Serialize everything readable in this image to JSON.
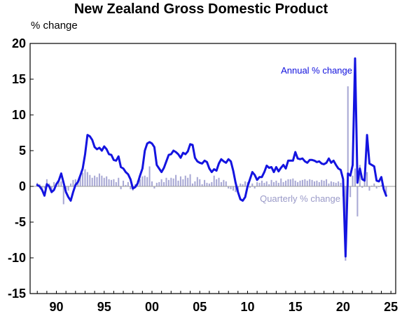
{
  "chart_data": {
    "type": "bar+line",
    "title": "New Zealand Gross Domestic Product",
    "ylabel": "% change",
    "xlabel": "",
    "ylim": [
      -15,
      20
    ],
    "yticks": [
      20,
      15,
      10,
      5,
      0,
      -5,
      -10,
      -15
    ],
    "xlim": [
      1987.25,
      2025.5
    ],
    "xticks": [
      {
        "year": 1990,
        "label": "90"
      },
      {
        "year": 1995,
        "label": "95"
      },
      {
        "year": 2000,
        "label": "00"
      },
      {
        "year": 2005,
        "label": "05"
      },
      {
        "year": 2010,
        "label": "10"
      },
      {
        "year": 2015,
        "label": "15"
      },
      {
        "year": 2020,
        "label": "20"
      },
      {
        "year": 2025,
        "label": "25"
      }
    ],
    "grid": false,
    "annotations": [
      {
        "text": "Annual % change",
        "series": "annual"
      },
      {
        "text": "Quarterly % change",
        "series": "quarterly"
      }
    ],
    "colors": {
      "annual": "#1414e0",
      "quarterly": "#a8a8d4",
      "zero_line": "#9a9a9a"
    },
    "series": [
      {
        "id": "annual",
        "kind": "line",
        "points": [
          [
            1988.0,
            0.2
          ],
          [
            1988.25,
            0.0
          ],
          [
            1988.5,
            -0.5
          ],
          [
            1988.75,
            -1.3
          ],
          [
            1989.0,
            0.3
          ],
          [
            1989.25,
            0.0
          ],
          [
            1989.5,
            -0.8
          ],
          [
            1989.75,
            -0.5
          ],
          [
            1990.0,
            0.3
          ],
          [
            1990.25,
            0.8
          ],
          [
            1990.5,
            1.8
          ],
          [
            1990.75,
            0.5
          ],
          [
            1991.0,
            -0.8
          ],
          [
            1991.25,
            -1.5
          ],
          [
            1991.5,
            -2.0
          ],
          [
            1991.75,
            -0.8
          ],
          [
            1992.0,
            0.2
          ],
          [
            1992.25,
            0.6
          ],
          [
            1992.5,
            1.5
          ],
          [
            1992.75,
            2.5
          ],
          [
            1993.0,
            4.5
          ],
          [
            1993.25,
            7.2
          ],
          [
            1993.5,
            7.0
          ],
          [
            1993.75,
            6.5
          ],
          [
            1994.0,
            5.5
          ],
          [
            1994.25,
            5.2
          ],
          [
            1994.5,
            5.4
          ],
          [
            1994.75,
            5.0
          ],
          [
            1995.0,
            5.6
          ],
          [
            1995.25,
            5.2
          ],
          [
            1995.5,
            4.5
          ],
          [
            1995.75,
            4.4
          ],
          [
            1996.0,
            3.7
          ],
          [
            1996.25,
            3.6
          ],
          [
            1996.5,
            4.2
          ],
          [
            1996.75,
            2.7
          ],
          [
            1997.0,
            2.5
          ],
          [
            1997.25,
            2.0
          ],
          [
            1997.5,
            1.7
          ],
          [
            1997.75,
            1.0
          ],
          [
            1998.0,
            -0.3
          ],
          [
            1998.25,
            -0.1
          ],
          [
            1998.5,
            0.4
          ],
          [
            1998.75,
            1.5
          ],
          [
            1999.0,
            2.5
          ],
          [
            1999.25,
            5.0
          ],
          [
            1999.5,
            6.0
          ],
          [
            1999.75,
            6.2
          ],
          [
            2000.0,
            6.0
          ],
          [
            2000.25,
            5.5
          ],
          [
            2000.5,
            3.0
          ],
          [
            2000.75,
            2.5
          ],
          [
            2001.0,
            2.0
          ],
          [
            2001.25,
            2.6
          ],
          [
            2001.5,
            3.5
          ],
          [
            2001.75,
            4.4
          ],
          [
            2002.0,
            4.5
          ],
          [
            2002.25,
            5.0
          ],
          [
            2002.5,
            4.8
          ],
          [
            2002.75,
            4.5
          ],
          [
            2003.0,
            4.0
          ],
          [
            2003.25,
            4.7
          ],
          [
            2003.5,
            4.5
          ],
          [
            2003.75,
            4.9
          ],
          [
            2004.0,
            5.9
          ],
          [
            2004.25,
            5.8
          ],
          [
            2004.5,
            4.0
          ],
          [
            2004.75,
            3.5
          ],
          [
            2005.0,
            3.3
          ],
          [
            2005.25,
            3.2
          ],
          [
            2005.5,
            3.6
          ],
          [
            2005.75,
            3.4
          ],
          [
            2006.0,
            2.5
          ],
          [
            2006.25,
            2.0
          ],
          [
            2006.5,
            2.4
          ],
          [
            2006.75,
            2.2
          ],
          [
            2007.0,
            3.2
          ],
          [
            2007.25,
            3.8
          ],
          [
            2007.5,
            3.5
          ],
          [
            2007.75,
            3.3
          ],
          [
            2008.0,
            3.8
          ],
          [
            2008.25,
            3.5
          ],
          [
            2008.5,
            2.2
          ],
          [
            2008.75,
            0.5
          ],
          [
            2009.0,
            -0.8
          ],
          [
            2009.25,
            -1.8
          ],
          [
            2009.5,
            -2.0
          ],
          [
            2009.75,
            -1.5
          ],
          [
            2010.0,
            0.0
          ],
          [
            2010.25,
            1.0
          ],
          [
            2010.5,
            2.0
          ],
          [
            2010.75,
            1.6
          ],
          [
            2011.0,
            0.9
          ],
          [
            2011.25,
            1.3
          ],
          [
            2011.5,
            1.3
          ],
          [
            2011.75,
            2.0
          ],
          [
            2012.0,
            2.9
          ],
          [
            2012.25,
            2.6
          ],
          [
            2012.5,
            2.7
          ],
          [
            2012.75,
            2.0
          ],
          [
            2013.0,
            2.7
          ],
          [
            2013.25,
            2.1
          ],
          [
            2013.5,
            2.6
          ],
          [
            2013.75,
            3.0
          ],
          [
            2014.0,
            2.5
          ],
          [
            2014.25,
            3.6
          ],
          [
            2014.5,
            3.6
          ],
          [
            2014.75,
            3.6
          ],
          [
            2015.0,
            4.8
          ],
          [
            2015.25,
            3.9
          ],
          [
            2015.5,
            3.8
          ],
          [
            2015.75,
            3.9
          ],
          [
            2016.0,
            3.5
          ],
          [
            2016.25,
            3.3
          ],
          [
            2016.5,
            3.7
          ],
          [
            2016.75,
            3.7
          ],
          [
            2017.0,
            3.6
          ],
          [
            2017.25,
            3.4
          ],
          [
            2017.5,
            3.5
          ],
          [
            2017.75,
            3.2
          ],
          [
            2018.0,
            3.1
          ],
          [
            2018.25,
            3.3
          ],
          [
            2018.5,
            3.9
          ],
          [
            2018.75,
            3.3
          ],
          [
            2019.0,
            3.6
          ],
          [
            2019.25,
            3.0
          ],
          [
            2019.5,
            2.5
          ],
          [
            2019.75,
            2.3
          ],
          [
            2020.0,
            1.0
          ],
          [
            2020.25,
            -9.8
          ],
          [
            2020.5,
            1.8
          ],
          [
            2020.75,
            1.5
          ],
          [
            2021.0,
            3.0
          ],
          [
            2021.25,
            17.9
          ],
          [
            2021.5,
            0.5
          ],
          [
            2021.75,
            2.5
          ],
          [
            2022.0,
            1.0
          ],
          [
            2022.25,
            0.8
          ],
          [
            2022.5,
            7.2
          ],
          [
            2022.75,
            3.2
          ],
          [
            2023.0,
            3.0
          ],
          [
            2023.25,
            2.8
          ],
          [
            2023.5,
            0.8
          ],
          [
            2023.75,
            0.7
          ],
          [
            2024.0,
            1.3
          ],
          [
            2024.25,
            -0.4
          ],
          [
            2024.5,
            -1.3
          ]
        ]
      },
      {
        "id": "quarterly",
        "kind": "bar",
        "points": [
          [
            1988.0,
            0.5
          ],
          [
            1988.25,
            0.3
          ],
          [
            1988.5,
            -0.6
          ],
          [
            1988.75,
            -0.3
          ],
          [
            1989.0,
            1.0
          ],
          [
            1989.25,
            0.4
          ],
          [
            1989.5,
            -0.8
          ],
          [
            1989.75,
            0.6
          ],
          [
            1990.0,
            0.3
          ],
          [
            1990.25,
            0.8
          ],
          [
            1990.5,
            0.7
          ],
          [
            1990.75,
            -2.5
          ],
          [
            1991.0,
            -0.4
          ],
          [
            1991.25,
            -0.6
          ],
          [
            1991.5,
            0.4
          ],
          [
            1991.75,
            0.9
          ],
          [
            1992.0,
            1.0
          ],
          [
            1992.25,
            0.5
          ],
          [
            1992.5,
            1.3
          ],
          [
            1992.75,
            1.9
          ],
          [
            1993.0,
            2.4
          ],
          [
            1993.25,
            2.0
          ],
          [
            1993.5,
            1.6
          ],
          [
            1993.75,
            1.2
          ],
          [
            1994.0,
            1.5
          ],
          [
            1994.25,
            1.3
          ],
          [
            1994.5,
            1.8
          ],
          [
            1994.75,
            1.5
          ],
          [
            1995.0,
            1.2
          ],
          [
            1995.25,
            1.4
          ],
          [
            1995.5,
            1.0
          ],
          [
            1995.75,
            0.9
          ],
          [
            1996.0,
            1.0
          ],
          [
            1996.25,
            0.6
          ],
          [
            1996.5,
            1.2
          ],
          [
            1996.75,
            -0.4
          ],
          [
            1997.0,
            0.8
          ],
          [
            1997.25,
            0.2
          ],
          [
            1997.5,
            0.6
          ],
          [
            1997.75,
            -0.4
          ],
          [
            1998.0,
            -0.6
          ],
          [
            1998.25,
            0.3
          ],
          [
            1998.5,
            0.8
          ],
          [
            1998.75,
            1.0
          ],
          [
            1999.0,
            1.4
          ],
          [
            1999.25,
            1.5
          ],
          [
            1999.5,
            1.3
          ],
          [
            1999.75,
            2.8
          ],
          [
            2000.0,
            0.7
          ],
          [
            2000.25,
            -0.3
          ],
          [
            2000.5,
            0.5
          ],
          [
            2000.75,
            0.6
          ],
          [
            2001.0,
            1.0
          ],
          [
            2001.25,
            0.6
          ],
          [
            2001.5,
            1.2
          ],
          [
            2001.75,
            0.9
          ],
          [
            2002.0,
            1.2
          ],
          [
            2002.25,
            1.1
          ],
          [
            2002.5,
            1.6
          ],
          [
            2002.75,
            0.8
          ],
          [
            2003.0,
            1.4
          ],
          [
            2003.25,
            1.0
          ],
          [
            2003.5,
            1.5
          ],
          [
            2003.75,
            1.2
          ],
          [
            2004.0,
            1.7
          ],
          [
            2004.25,
            0.4
          ],
          [
            2004.5,
            0.7
          ],
          [
            2004.75,
            1.3
          ],
          [
            2005.0,
            1.0
          ],
          [
            2005.25,
            0.3
          ],
          [
            2005.5,
            0.9
          ],
          [
            2005.75,
            0.5
          ],
          [
            2006.0,
            0.4
          ],
          [
            2006.25,
            0.6
          ],
          [
            2006.5,
            1.5
          ],
          [
            2006.75,
            1.0
          ],
          [
            2007.0,
            1.2
          ],
          [
            2007.25,
            0.6
          ],
          [
            2007.5,
            0.9
          ],
          [
            2007.75,
            0.7
          ],
          [
            2008.0,
            -0.3
          ],
          [
            2008.25,
            -0.4
          ],
          [
            2008.5,
            -0.6
          ],
          [
            2008.75,
            -0.8
          ],
          [
            2009.0,
            -1.0
          ],
          [
            2009.25,
            0.4
          ],
          [
            2009.5,
            0.3
          ],
          [
            2009.75,
            0.7
          ],
          [
            2010.0,
            0.6
          ],
          [
            2010.25,
            -0.2
          ],
          [
            2010.5,
            0.4
          ],
          [
            2010.75,
            -0.3
          ],
          [
            2011.0,
            0.6
          ],
          [
            2011.25,
            0.5
          ],
          [
            2011.5,
            0.8
          ],
          [
            2011.75,
            0.5
          ],
          [
            2012.0,
            0.7
          ],
          [
            2012.25,
            0.3
          ],
          [
            2012.5,
            0.9
          ],
          [
            2012.75,
            0.6
          ],
          [
            2013.0,
            0.8
          ],
          [
            2013.25,
            0.5
          ],
          [
            2013.5,
            1.1
          ],
          [
            2013.75,
            0.6
          ],
          [
            2014.0,
            0.8
          ],
          [
            2014.25,
            1.0
          ],
          [
            2014.5,
            1.0
          ],
          [
            2014.75,
            1.1
          ],
          [
            2015.0,
            0.8
          ],
          [
            2015.25,
            0.6
          ],
          [
            2015.5,
            0.8
          ],
          [
            2015.75,
            0.9
          ],
          [
            2016.0,
            1.0
          ],
          [
            2016.25,
            0.8
          ],
          [
            2016.5,
            1.0
          ],
          [
            2016.75,
            0.9
          ],
          [
            2017.0,
            0.7
          ],
          [
            2017.25,
            0.8
          ],
          [
            2017.5,
            0.6
          ],
          [
            2017.75,
            0.9
          ],
          [
            2018.0,
            0.8
          ],
          [
            2018.25,
            1.0
          ],
          [
            2018.5,
            0.4
          ],
          [
            2018.75,
            0.7
          ],
          [
            2019.0,
            0.6
          ],
          [
            2019.25,
            0.5
          ],
          [
            2019.5,
            0.7
          ],
          [
            2019.75,
            0.5
          ],
          [
            2020.0,
            -1.4
          ],
          [
            2020.25,
            -10.4
          ],
          [
            2020.5,
            14.0
          ],
          [
            2020.75,
            -1.5
          ],
          [
            2021.0,
            1.5
          ],
          [
            2021.25,
            2.5
          ],
          [
            2021.5,
            -4.2
          ],
          [
            2021.75,
            3.0
          ],
          [
            2022.0,
            -0.2
          ],
          [
            2022.25,
            1.9
          ],
          [
            2022.5,
            2.0
          ],
          [
            2022.75,
            -0.6
          ],
          [
            2023.0,
            0.1
          ],
          [
            2023.25,
            0.4
          ],
          [
            2023.5,
            -0.3
          ],
          [
            2023.75,
            -0.1
          ],
          [
            2024.0,
            0.2
          ],
          [
            2024.25,
            -0.2
          ],
          [
            2024.5,
            -1.0
          ]
        ]
      }
    ]
  }
}
